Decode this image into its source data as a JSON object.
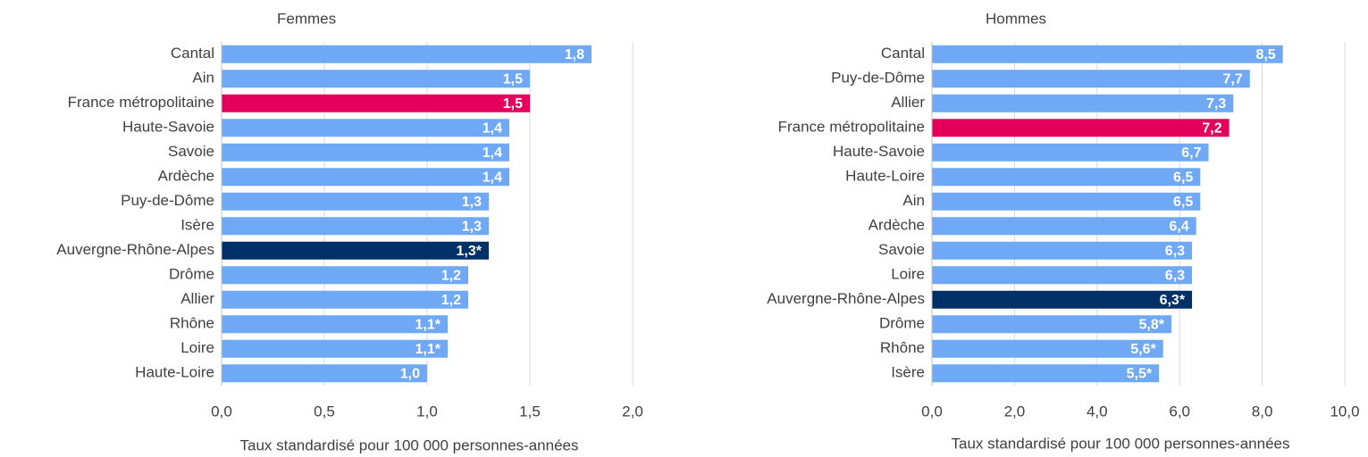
{
  "chart_data": [
    {
      "type": "bar",
      "orientation": "horizontal",
      "title": "Femmes",
      "xlabel": "Taux  standardisé pour 100 000 personnes-années",
      "categories": [
        "Cantal",
        "Ain",
        "France métropolitaine",
        "Haute-Savoie",
        "Savoie",
        "Ardèche",
        "Puy-de-Dôme",
        "Isère",
        "Auvergne-Rhône-Alpes",
        "Drôme",
        "Allier",
        "Rhône",
        "Loire",
        "Haute-Loire"
      ],
      "values": [
        1.8,
        1.5,
        1.5,
        1.4,
        1.4,
        1.4,
        1.3,
        1.3,
        1.3,
        1.2,
        1.2,
        1.1,
        1.1,
        1.0
      ],
      "value_labels": [
        "1,8",
        "1,5",
        "1,5",
        "1,4",
        "1,4",
        "1,4",
        "1,3",
        "1,3",
        "1,3*",
        "1,2",
        "1,2",
        "1,1*",
        "1,1*",
        "1,0"
      ],
      "colors": [
        "#6fa8f5",
        "#6fa8f5",
        "#e4005a",
        "#6fa8f5",
        "#6fa8f5",
        "#6fa8f5",
        "#6fa8f5",
        "#6fa8f5",
        "#003068",
        "#6fa8f5",
        "#6fa8f5",
        "#6fa8f5",
        "#6fa8f5",
        "#6fa8f5"
      ],
      "xlim": [
        0,
        2
      ],
      "xticks": [
        {
          "value": 0,
          "label": "0,0"
        },
        {
          "value": 0.5,
          "label": "0,5"
        },
        {
          "value": 1,
          "label": "1,0"
        },
        {
          "value": 1.5,
          "label": "1,5"
        },
        {
          "value": 2,
          "label": "2,0"
        }
      ],
      "grid": true
    },
    {
      "type": "bar",
      "orientation": "horizontal",
      "title": "Hommes",
      "xlabel": "Taux  standardisé pour 100 000 personnes-années",
      "categories": [
        "Cantal",
        "Puy-de-Dôme",
        "Allier",
        "France métropolitaine",
        "Haute-Savoie",
        "Haute-Loire",
        "Ain",
        "Ardèche",
        "Savoie",
        "Loire",
        "Auvergne-Rhône-Alpes",
        "Drôme",
        "Rhône",
        "Isère"
      ],
      "values": [
        8.5,
        7.7,
        7.3,
        7.2,
        6.7,
        6.5,
        6.5,
        6.4,
        6.3,
        6.3,
        6.3,
        5.8,
        5.6,
        5.5
      ],
      "value_labels": [
        "8,5",
        "7,7",
        "7,3",
        "7,2",
        "6,7",
        "6,5",
        "6,5",
        "6,4",
        "6,3",
        "6,3",
        "6,3*",
        "5,8*",
        "5,6*",
        "5,5*"
      ],
      "colors": [
        "#6fa8f5",
        "#6fa8f5",
        "#6fa8f5",
        "#e4005a",
        "#6fa8f5",
        "#6fa8f5",
        "#6fa8f5",
        "#6fa8f5",
        "#6fa8f5",
        "#6fa8f5",
        "#003068",
        "#6fa8f5",
        "#6fa8f5",
        "#6fa8f5"
      ],
      "xlim": [
        0,
        10
      ],
      "xticks": [
        {
          "value": 0,
          "label": "0,0"
        },
        {
          "value": 2,
          "label": "2,0"
        },
        {
          "value": 4,
          "label": "4,0"
        },
        {
          "value": 6,
          "label": "6,0"
        },
        {
          "value": 8,
          "label": "8,0"
        },
        {
          "value": 10,
          "label": "10,0"
        }
      ],
      "grid": true
    }
  ]
}
